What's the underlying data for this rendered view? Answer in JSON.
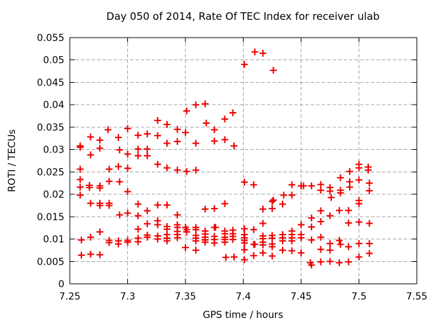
{
  "page": {
    "background": "#ffffff"
  },
  "colors": {
    "marker": "#ee0000",
    "grid": "#a6a6a6",
    "border": "#000000",
    "text": "#000000"
  },
  "chart_data": {
    "type": "scatter",
    "title": "Day 050 of 2014, Rate Of TEC Index for receiver ulab",
    "xlabel": "GPS time / hours",
    "ylabel": "ROTI / TECUs",
    "xlim": [
      7.25,
      7.55
    ],
    "ylim": [
      0,
      0.055
    ],
    "grid": true,
    "legend": "none",
    "marker": {
      "shape": "plus",
      "color": "#ee0000",
      "size": 11
    },
    "x_ticks": [
      {
        "value": 7.25,
        "label": "7.25"
      },
      {
        "value": 7.3,
        "label": "7.3"
      },
      {
        "value": 7.35,
        "label": "7.35"
      },
      {
        "value": 7.4,
        "label": "7.4"
      },
      {
        "value": 7.45,
        "label": "7.45"
      },
      {
        "value": 7.5,
        "label": "7.5"
      },
      {
        "value": 7.55,
        "label": "7.55"
      }
    ],
    "y_ticks": [
      {
        "value": 0,
        "label": "0"
      },
      {
        "value": 0.005,
        "label": "0.005"
      },
      {
        "value": 0.01,
        "label": "0.01"
      },
      {
        "value": 0.015,
        "label": "0.015"
      },
      {
        "value": 0.02,
        "label": "0.02"
      },
      {
        "value": 0.025,
        "label": "0.025"
      },
      {
        "value": 0.03,
        "label": "0.03"
      },
      {
        "value": 0.035,
        "label": "0.035"
      },
      {
        "value": 0.04,
        "label": "0.04"
      },
      {
        "value": 0.045,
        "label": "0.045"
      },
      {
        "value": 0.05,
        "label": "0.05"
      },
      {
        "value": 0.055,
        "label": "0.055"
      }
    ],
    "series": [
      {
        "name": "ROTI",
        "points": [
          [
            7.259,
            0.0308
          ],
          [
            7.259,
            0.0305
          ],
          [
            7.259,
            0.0256
          ],
          [
            7.259,
            0.0233
          ],
          [
            7.259,
            0.0216
          ],
          [
            7.259,
            0.0198
          ],
          [
            7.26,
            0.0098
          ],
          [
            7.26,
            0.0064
          ],
          [
            7.267,
            0.022
          ],
          [
            7.267,
            0.0215
          ],
          [
            7.268,
            0.0328
          ],
          [
            7.268,
            0.0288
          ],
          [
            7.268,
            0.018
          ],
          [
            7.268,
            0.0104
          ],
          [
            7.268,
            0.0066
          ],
          [
            7.276,
            0.0321
          ],
          [
            7.276,
            0.0303
          ],
          [
            7.276,
            0.0219
          ],
          [
            7.276,
            0.0214
          ],
          [
            7.276,
            0.018
          ],
          [
            7.276,
            0.0175
          ],
          [
            7.276,
            0.0116
          ],
          [
            7.276,
            0.0065
          ],
          [
            7.283,
            0.0344
          ],
          [
            7.284,
            0.0256
          ],
          [
            7.284,
            0.0229
          ],
          [
            7.284,
            0.018
          ],
          [
            7.284,
            0.0175
          ],
          [
            7.284,
            0.0097
          ],
          [
            7.284,
            0.0092
          ],
          [
            7.292,
            0.0327
          ],
          [
            7.292,
            0.0262
          ],
          [
            7.292,
            0.0096
          ],
          [
            7.292,
            0.0089
          ],
          [
            7.293,
            0.0299
          ],
          [
            7.293,
            0.0228
          ],
          [
            7.293,
            0.0154
          ],
          [
            7.3,
            0.0347
          ],
          [
            7.3,
            0.029
          ],
          [
            7.3,
            0.0258
          ],
          [
            7.3,
            0.0206
          ],
          [
            7.3,
            0.0158
          ],
          [
            7.3,
            0.0097
          ],
          [
            7.3,
            0.0093
          ],
          [
            7.309,
            0.0332
          ],
          [
            7.309,
            0.0301
          ],
          [
            7.309,
            0.0286
          ],
          [
            7.309,
            0.0178
          ],
          [
            7.309,
            0.0152
          ],
          [
            7.309,
            0.0122
          ],
          [
            7.309,
            0.0102
          ],
          [
            7.309,
            0.0094
          ],
          [
            7.317,
            0.0335
          ],
          [
            7.317,
            0.0301
          ],
          [
            7.317,
            0.0286
          ],
          [
            7.317,
            0.0163
          ],
          [
            7.317,
            0.0134
          ],
          [
            7.317,
            0.0109
          ],
          [
            7.317,
            0.0104
          ],
          [
            7.326,
            0.0365
          ],
          [
            7.326,
            0.0331
          ],
          [
            7.326,
            0.0267
          ],
          [
            7.326,
            0.0176
          ],
          [
            7.326,
            0.0141
          ],
          [
            7.326,
            0.0132
          ],
          [
            7.326,
            0.0107
          ],
          [
            7.326,
            0.01
          ],
          [
            7.334,
            0.0356
          ],
          [
            7.334,
            0.0314
          ],
          [
            7.334,
            0.0259
          ],
          [
            7.334,
            0.0176
          ],
          [
            7.334,
            0.0128
          ],
          [
            7.334,
            0.0122
          ],
          [
            7.334,
            0.011
          ],
          [
            7.334,
            0.0102
          ],
          [
            7.334,
            0.0096
          ],
          [
            7.343,
            0.0345
          ],
          [
            7.343,
            0.0318
          ],
          [
            7.343,
            0.0254
          ],
          [
            7.343,
            0.0154
          ],
          [
            7.343,
            0.0132
          ],
          [
            7.343,
            0.0126
          ],
          [
            7.343,
            0.0117
          ],
          [
            7.343,
            0.011
          ],
          [
            7.343,
            0.0103
          ],
          [
            7.35,
            0.0338
          ],
          [
            7.35,
            0.0126
          ],
          [
            7.35,
            0.0081
          ],
          [
            7.351,
            0.0386
          ],
          [
            7.351,
            0.0251
          ],
          [
            7.351,
            0.0121
          ],
          [
            7.351,
            0.0116
          ],
          [
            7.359,
            0.04
          ],
          [
            7.359,
            0.0314
          ],
          [
            7.359,
            0.0254
          ],
          [
            7.359,
            0.0126
          ],
          [
            7.359,
            0.0121
          ],
          [
            7.359,
            0.0108
          ],
          [
            7.359,
            0.0102
          ],
          [
            7.359,
            0.0096
          ],
          [
            7.359,
            0.0075
          ],
          [
            7.367,
            0.0402
          ],
          [
            7.367,
            0.0167
          ],
          [
            7.367,
            0.0118
          ],
          [
            7.367,
            0.0111
          ],
          [
            7.367,
            0.0104
          ],
          [
            7.367,
            0.0098
          ],
          [
            7.367,
            0.0093
          ],
          [
            7.368,
            0.0359
          ],
          [
            7.375,
            0.0344
          ],
          [
            7.375,
            0.0319
          ],
          [
            7.375,
            0.0168
          ],
          [
            7.375,
            0.0126
          ],
          [
            7.376,
            0.0126
          ],
          [
            7.375,
            0.0106
          ],
          [
            7.375,
            0.0099
          ],
          [
            7.375,
            0.0091
          ],
          [
            7.384,
            0.0368
          ],
          [
            7.384,
            0.0322
          ],
          [
            7.384,
            0.0179
          ],
          [
            7.384,
            0.0118
          ],
          [
            7.384,
            0.0112
          ],
          [
            7.384,
            0.0104
          ],
          [
            7.384,
            0.0099
          ],
          [
            7.384,
            0.0093
          ],
          [
            7.385,
            0.0059
          ],
          [
            7.391,
            0.0382
          ],
          [
            7.391,
            0.012
          ],
          [
            7.391,
            0.0112
          ],
          [
            7.391,
            0.0106
          ],
          [
            7.391,
            0.0099
          ],
          [
            7.392,
            0.0308
          ],
          [
            7.392,
            0.006
          ],
          [
            7.401,
            0.049
          ],
          [
            7.401,
            0.0227
          ],
          [
            7.401,
            0.0123
          ],
          [
            7.401,
            0.011
          ],
          [
            7.401,
            0.0103
          ],
          [
            7.401,
            0.0097
          ],
          [
            7.401,
            0.0091
          ],
          [
            7.401,
            0.0076
          ],
          [
            7.401,
            0.0054
          ],
          [
            7.409,
            0.0221
          ],
          [
            7.409,
            0.0121
          ],
          [
            7.409,
            0.0088
          ],
          [
            7.41,
            0.0088
          ],
          [
            7.409,
            0.0063
          ],
          [
            7.41,
            0.0518
          ],
          [
            7.417,
            0.0515
          ],
          [
            7.417,
            0.0167
          ],
          [
            7.417,
            0.0135
          ],
          [
            7.417,
            0.0107
          ],
          [
            7.417,
            0.0101
          ],
          [
            7.417,
            0.0093
          ],
          [
            7.417,
            0.0087
          ],
          [
            7.417,
            0.0069
          ],
          [
            7.425,
            0.0184
          ],
          [
            7.425,
            0.0168
          ],
          [
            7.425,
            0.0108
          ],
          [
            7.425,
            0.0102
          ],
          [
            7.425,
            0.0089
          ],
          [
            7.425,
            0.0083
          ],
          [
            7.425,
            0.0062
          ],
          [
            7.426,
            0.0477
          ],
          [
            7.426,
            0.0187
          ],
          [
            7.434,
            0.0178
          ],
          [
            7.434,
            0.011
          ],
          [
            7.434,
            0.0103
          ],
          [
            7.434,
            0.0096
          ],
          [
            7.434,
            0.0075
          ],
          [
            7.435,
            0.0198
          ],
          [
            7.442,
            0.0221
          ],
          [
            7.442,
            0.0198
          ],
          [
            7.442,
            0.0118
          ],
          [
            7.442,
            0.011
          ],
          [
            7.442,
            0.0103
          ],
          [
            7.442,
            0.0096
          ],
          [
            7.442,
            0.0074
          ],
          [
            7.45,
            0.0219
          ],
          [
            7.452,
            0.0219
          ],
          [
            7.45,
            0.0132
          ],
          [
            7.45,
            0.011
          ],
          [
            7.45,
            0.0103
          ],
          [
            7.45,
            0.0069
          ],
          [
            7.458,
            0.0047
          ],
          [
            7.459,
            0.0042
          ],
          [
            7.459,
            0.0219
          ],
          [
            7.459,
            0.0147
          ],
          [
            7.459,
            0.0127
          ],
          [
            7.459,
            0.0098
          ],
          [
            7.467,
            0.0222
          ],
          [
            7.467,
            0.0209
          ],
          [
            7.467,
            0.0163
          ],
          [
            7.467,
            0.0139
          ],
          [
            7.467,
            0.0104
          ],
          [
            7.467,
            0.0077
          ],
          [
            7.467,
            0.0049
          ],
          [
            7.475,
            0.0215
          ],
          [
            7.475,
            0.0207
          ],
          [
            7.475,
            0.0152
          ],
          [
            7.475,
            0.009
          ],
          [
            7.475,
            0.0075
          ],
          [
            7.475,
            0.005
          ],
          [
            7.476,
            0.0193
          ],
          [
            7.483,
            0.0164
          ],
          [
            7.483,
            0.0097
          ],
          [
            7.483,
            0.0047
          ],
          [
            7.484,
            0.0237
          ],
          [
            7.484,
            0.0209
          ],
          [
            7.484,
            0.0203
          ],
          [
            7.484,
            0.0088
          ],
          [
            7.491,
            0.0164
          ],
          [
            7.491,
            0.0136
          ],
          [
            7.491,
            0.0083
          ],
          [
            7.491,
            0.0049
          ],
          [
            7.492,
            0.0251
          ],
          [
            7.492,
            0.0228
          ],
          [
            7.492,
            0.0216
          ],
          [
            7.5,
            0.0267
          ],
          [
            7.5,
            0.0259
          ],
          [
            7.5,
            0.0232
          ],
          [
            7.5,
            0.0186
          ],
          [
            7.5,
            0.0179
          ],
          [
            7.5,
            0.0138
          ],
          [
            7.5,
            0.009
          ],
          [
            7.5,
            0.006
          ],
          [
            7.508,
            0.0261
          ],
          [
            7.508,
            0.0254
          ],
          [
            7.509,
            0.0225
          ],
          [
            7.509,
            0.0208
          ],
          [
            7.509,
            0.0135
          ],
          [
            7.509,
            0.009
          ],
          [
            7.509,
            0.0068
          ]
        ]
      }
    ]
  }
}
